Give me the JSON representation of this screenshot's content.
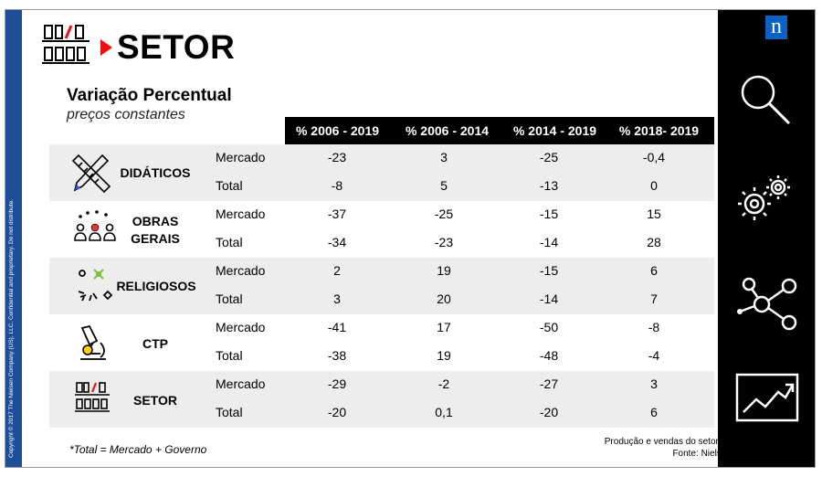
{
  "header": {
    "title": "SETOR",
    "subtitle": "Variação Percentual",
    "subtitle2": "preços constantes"
  },
  "columns": [
    "% 2006 - 2019",
    "% 2006 - 2014",
    "% 2014 - 2019",
    "% 2018- 2019"
  ],
  "categories": [
    {
      "name_line1": "DIDÁTICOS",
      "name_line2": "",
      "icon": "pencil-ruler-icon",
      "rows": [
        {
          "label": "Mercado",
          "values": [
            "-23",
            "3",
            "-25",
            "-0,4"
          ]
        },
        {
          "label": "Total",
          "values": [
            "-8",
            "5",
            "-13",
            "0"
          ]
        }
      ]
    },
    {
      "name_line1": "OBRAS",
      "name_line2": "GERAIS",
      "icon": "people-icon",
      "rows": [
        {
          "label": "Mercado",
          "values": [
            "-37",
            "-25",
            "-15",
            "15"
          ]
        },
        {
          "label": "Total",
          "values": [
            "-34",
            "-23",
            "-14",
            "28"
          ]
        }
      ]
    },
    {
      "name_line1": "RELIGIOSOS",
      "name_line2": "",
      "icon": "religion-symbols-icon",
      "rows": [
        {
          "label": "Mercado",
          "values": [
            "2",
            "19",
            "-15",
            "6"
          ]
        },
        {
          "label": "Total",
          "values": [
            "3",
            "20",
            "-14",
            "7"
          ]
        }
      ]
    },
    {
      "name_line1": "CTP",
      "name_line2": "",
      "icon": "microscope-icon",
      "rows": [
        {
          "label": "Mercado",
          "values": [
            "-41",
            "17",
            "-50",
            "-8"
          ]
        },
        {
          "label": "Total",
          "values": [
            "-38",
            "19",
            "-48",
            "-4"
          ]
        }
      ]
    },
    {
      "name_line1": "SETOR",
      "name_line2": "",
      "icon": "bookshelf-icon",
      "rows": [
        {
          "label": "Mercado",
          "values": [
            "-29",
            "-2",
            "-27",
            "3"
          ]
        },
        {
          "label": "Total",
          "values": [
            "-20",
            "0,1",
            "-20",
            "6"
          ]
        }
      ]
    }
  ],
  "footnote": "*Total = Mercado + Governo",
  "source": {
    "line1": "Produção e vendas do setor editorial brasileiro",
    "line2": "Fonte: Nielsen | Nielsen Book"
  },
  "copyright": "Copyright © 2017 The Nielsen Company (US), LLC. Confidential and proprietary. Do not distribute.",
  "brand": {
    "logo_letter": "n",
    "accent": "#e11111",
    "logo_blue": "#0a62c5",
    "band_blue": "#1f4e99"
  },
  "side_icons": [
    "magnifier-icon",
    "gears-icon",
    "network-icon",
    "trend-chart-icon"
  ]
}
